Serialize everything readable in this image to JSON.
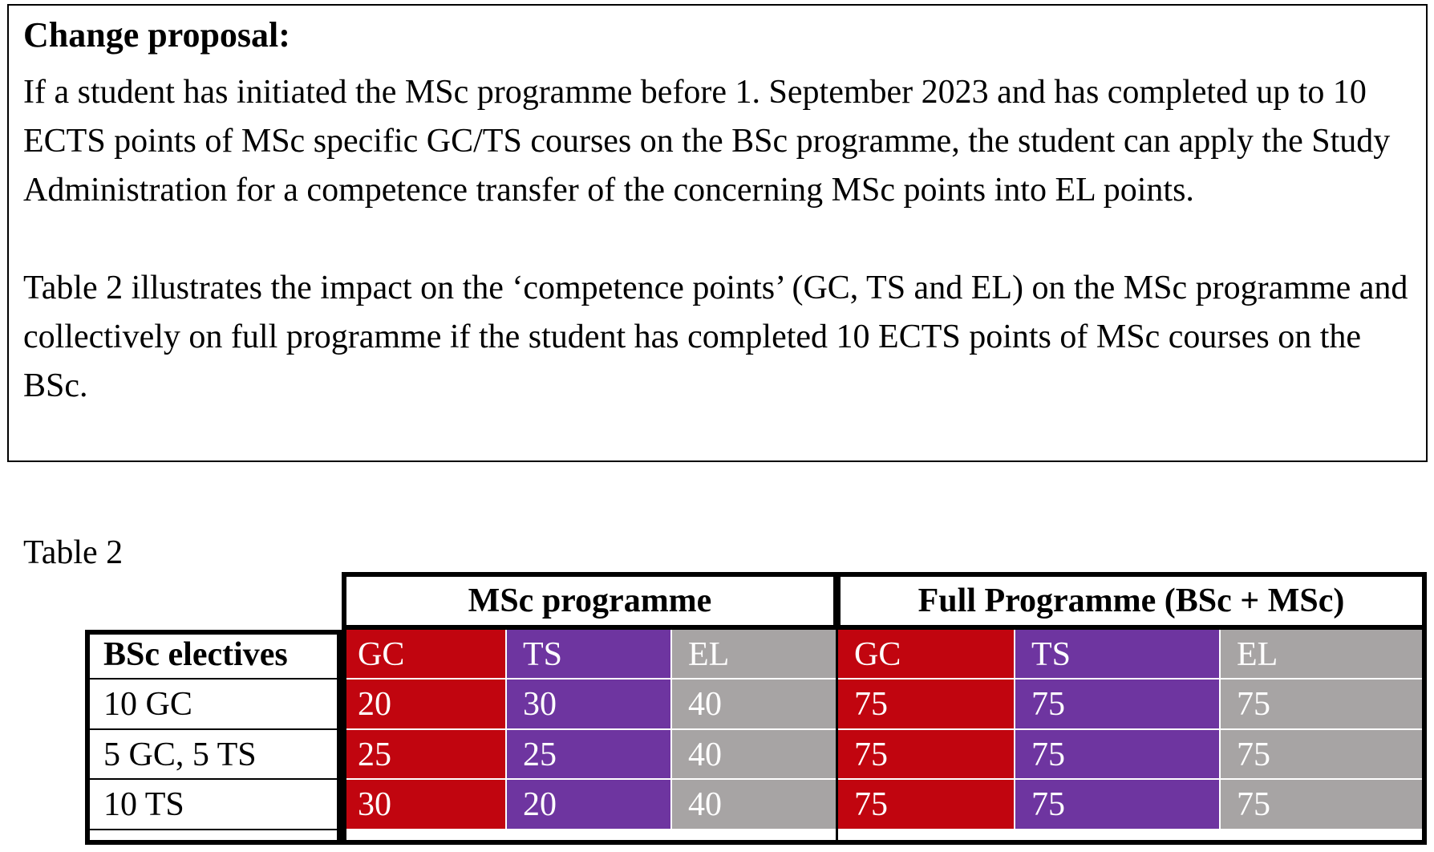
{
  "proposal": {
    "title": "Change proposal:",
    "paragraph_1": "If a student has initiated the MSc programme before 1. September 2023 and has completed up to 10 ECTS points of MSc specific GC/TS courses on the BSc programme, the student can apply the Study Administration for a competence transfer of the concerning MSc points into EL points.",
    "paragraph_2": "Table 2 illustrates the impact on the ‘competence points’ (GC, TS and EL) on the MSc programme and collectively on full programme if the student has completed 10 ECTS points of MSc courses on the BSc."
  },
  "table": {
    "caption": "Table 2",
    "group_headers": {
      "msc": "MSc programme",
      "full": "Full Programme (BSc + MSc)"
    },
    "row_header": "BSc electives",
    "column_headers": [
      "GC",
      "TS",
      "EL",
      "GC",
      "TS",
      "EL"
    ],
    "rows": [
      {
        "label": "10 GC",
        "values": [
          "20",
          "30",
          "40",
          "75",
          "75",
          "75"
        ]
      },
      {
        "label": "5 GC, 5 TS",
        "values": [
          "25",
          "25",
          "40",
          "75",
          "75",
          "75"
        ]
      },
      {
        "label": "10 TS",
        "values": [
          "30",
          "20",
          "40",
          "75",
          "75",
          "75"
        ]
      }
    ],
    "colors": {
      "GC": "#c1050f",
      "TS": "#6e35a0",
      "EL": "#a7a4a4"
    }
  }
}
